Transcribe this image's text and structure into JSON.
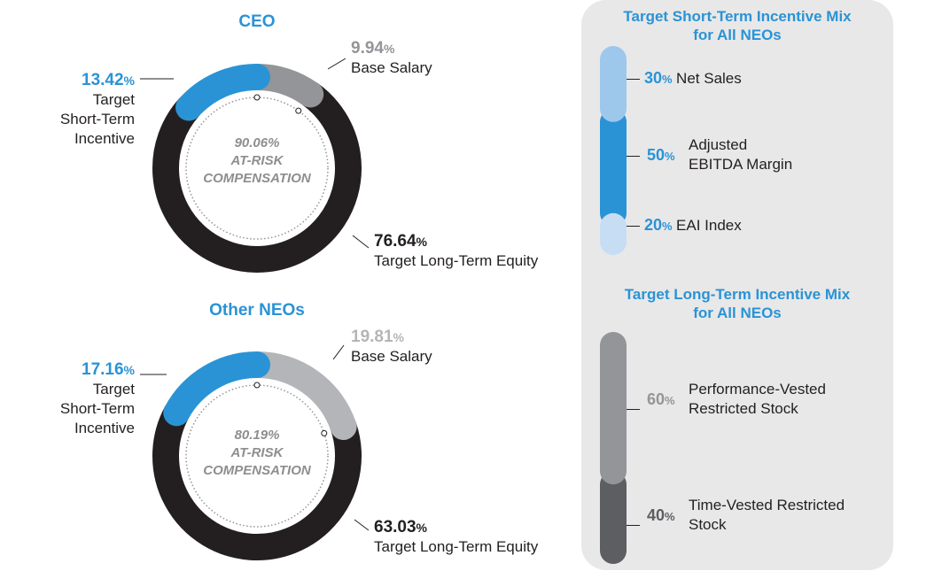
{
  "ceo": {
    "title": "CEO",
    "at_risk_value": "90.06%",
    "at_risk_line1": "AT-RISK",
    "at_risk_line2": "COMPENSATION",
    "base_salary": {
      "value": "9.94",
      "sign": "%",
      "label": "Base Salary"
    },
    "sti": {
      "value": "13.42",
      "sign": "%",
      "label_lines": [
        "Target",
        "Short-Term",
        "Incentive"
      ]
    },
    "lte": {
      "value": "76.64",
      "sign": "%",
      "label": "Target Long-Term Equity"
    }
  },
  "neos": {
    "title": "Other NEOs",
    "at_risk_value": "80.19%",
    "at_risk_line1": "AT-RISK",
    "at_risk_line2": "COMPENSATION",
    "base_salary": {
      "value": "19.81",
      "sign": "%",
      "label": "Base Salary"
    },
    "sti": {
      "value": "17.16",
      "sign": "%",
      "label_lines": [
        "Target",
        "Short-Term",
        "Incentive"
      ]
    },
    "lte": {
      "value": "63.03",
      "sign": "%",
      "label": "Target Long-Term Equity"
    }
  },
  "sti_mix": {
    "title_line1": "Target Short-Term Incentive Mix",
    "title_line2": "for All NEOs",
    "items": [
      {
        "value": "30",
        "sign": "%",
        "label_lines": [
          "Net Sales"
        ]
      },
      {
        "value": "50",
        "sign": "%",
        "label_lines": [
          "Adjusted",
          "EBITDA Margin"
        ]
      },
      {
        "value": "20",
        "sign": "%",
        "label_lines": [
          "EAI Index"
        ]
      }
    ]
  },
  "lti_mix": {
    "title_line1": "Target Long-Term Incentive Mix",
    "title_line2": "for All NEOs",
    "items": [
      {
        "value": "60",
        "sign": "%",
        "label_lines": [
          "Performance-Vested",
          "Restricted Stock"
        ]
      },
      {
        "value": "40",
        "sign": "%",
        "label_lines": [
          "Time-Vested Restricted",
          "Stock"
        ]
      }
    ]
  },
  "colors": {
    "blue": "#2a93d5",
    "gray": "#939598",
    "light_gray": "#b4b5b8",
    "black": "#231f20",
    "light_blue": "#9dc8ec",
    "pale_blue": "#c6ddf3",
    "dark_gray": "#5d5e61"
  },
  "chart_data": [
    {
      "type": "pie",
      "title": "CEO",
      "categories": [
        "Base Salary",
        "Target Short-Term Incentive",
        "Target Long-Term Equity"
      ],
      "values": [
        9.94,
        13.42,
        76.64
      ],
      "center_label": "90.06% AT-RISK COMPENSATION"
    },
    {
      "type": "pie",
      "title": "Other NEOs",
      "categories": [
        "Base Salary",
        "Target Short-Term Incentive",
        "Target Long-Term Equity"
      ],
      "values": [
        19.81,
        17.16,
        63.03
      ],
      "center_label": "80.19% AT-RISK COMPENSATION"
    },
    {
      "type": "bar",
      "title": "Target Short-Term Incentive Mix for All NEOs",
      "categories": [
        "Net Sales",
        "Adjusted EBITDA Margin",
        "EAI Index"
      ],
      "values": [
        30,
        50,
        20
      ],
      "stacked": true
    },
    {
      "type": "bar",
      "title": "Target Long-Term Incentive Mix for All NEOs",
      "categories": [
        "Performance-Vested Restricted Stock",
        "Time-Vested Restricted Stock"
      ],
      "values": [
        60,
        40
      ],
      "stacked": true
    }
  ]
}
